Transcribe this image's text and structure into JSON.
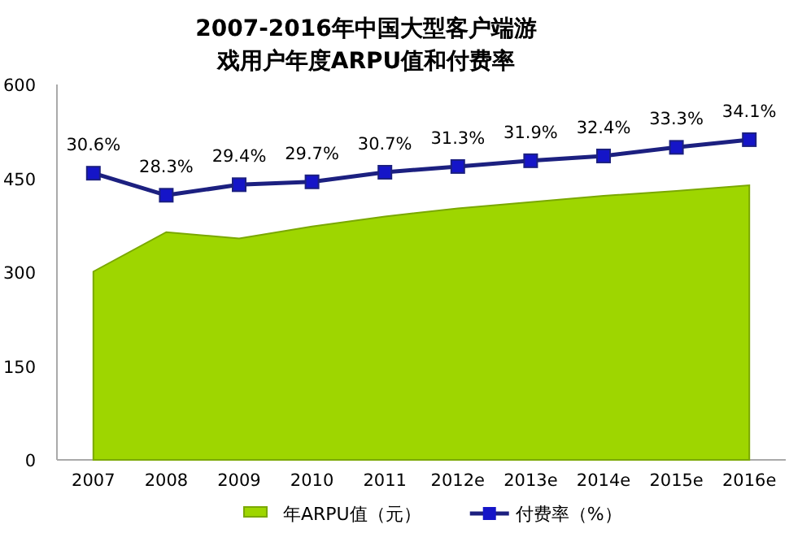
{
  "chart_data": {
    "type": "area",
    "title": "2007-2016年中国大型客户端游戏用户年度ARPU值和付费率",
    "categories": [
      "2007",
      "2008",
      "2009",
      "2010",
      "2011",
      "2012e",
      "2013e",
      "2014e",
      "2015e",
      "2016e"
    ],
    "ylim": [
      0,
      600
    ],
    "yticks": [
      0,
      150,
      300,
      450,
      600
    ],
    "legend": "bottom",
    "grid": false,
    "series": [
      {
        "name": "年ARPU值（元）",
        "color": "#9ed600",
        "values": [
          301,
          364,
          354,
          373,
          389,
          402,
          412,
          422,
          430,
          439
        ]
      },
      {
        "name": "付费率（%）",
        "type": "line",
        "axis": "y2",
        "color": "#1c2080",
        "marker": "square",
        "value_labels": [
          "30.6%",
          "28.3%",
          "29.4%",
          "29.7%",
          "30.7%",
          "31.3%",
          "31.9%",
          "32.4%",
          "33.3%",
          "34.1%"
        ],
        "values": [
          30.6,
          28.3,
          29.4,
          29.7,
          30.7,
          31.3,
          31.9,
          32.4,
          33.3,
          34.1
        ]
      }
    ]
  }
}
